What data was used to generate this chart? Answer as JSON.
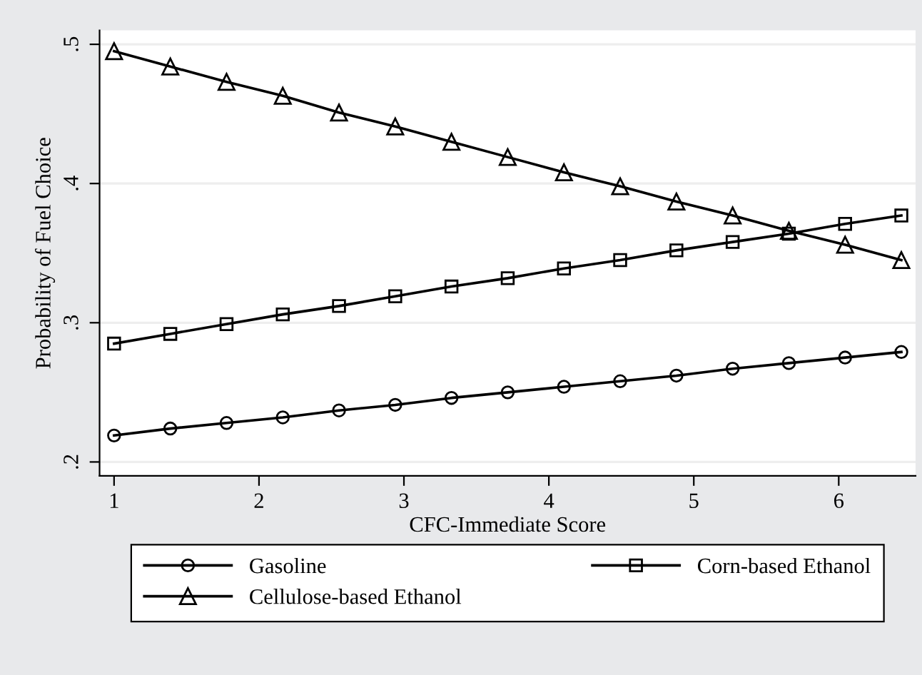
{
  "chart_data": {
    "type": "line",
    "xlabel": "CFC-Immediate Score",
    "ylabel": "Probability of Fuel Choice",
    "x": [
      1,
      1.388,
      1.776,
      2.164,
      2.552,
      2.94,
      3.328,
      3.716,
      4.104,
      4.492,
      4.88,
      5.268,
      5.656,
      6.044,
      6.432
    ],
    "series": [
      {
        "name": "Gasoline",
        "color": "#000000",
        "marker": "circle",
        "values": [
          0.219,
          0.224,
          0.228,
          0.232,
          0.237,
          0.241,
          0.246,
          0.25,
          0.254,
          0.258,
          0.262,
          0.267,
          0.271,
          0.275,
          0.279
        ]
      },
      {
        "name": "Corn-based Ethanol",
        "color": "#000000",
        "marker": "square",
        "values": [
          0.285,
          0.292,
          0.299,
          0.306,
          0.312,
          0.319,
          0.326,
          0.332,
          0.339,
          0.345,
          0.352,
          0.358,
          0.364,
          0.371,
          0.377
        ]
      },
      {
        "name": "Cellulose-based Ethanol",
        "color": "#000000",
        "marker": "triangle",
        "values": [
          0.495,
          0.484,
          0.473,
          0.463,
          0.451,
          0.441,
          0.43,
          0.419,
          0.408,
          0.398,
          0.387,
          0.377,
          0.366,
          0.356,
          0.345
        ]
      }
    ],
    "xlim": [
      0.9,
      6.53
    ],
    "ylim": [
      0.19,
      0.51
    ],
    "xticks": [
      1,
      2,
      3,
      4,
      5,
      6
    ],
    "yticks": [
      {
        "value": 0.2,
        "label": ".2"
      },
      {
        "value": 0.3,
        "label": ".3"
      },
      {
        "value": 0.4,
        "label": ".4"
      },
      {
        "value": 0.5,
        "label": ".5"
      }
    ],
    "grid": "y",
    "legend": "bottom",
    "line_style": "solid"
  }
}
